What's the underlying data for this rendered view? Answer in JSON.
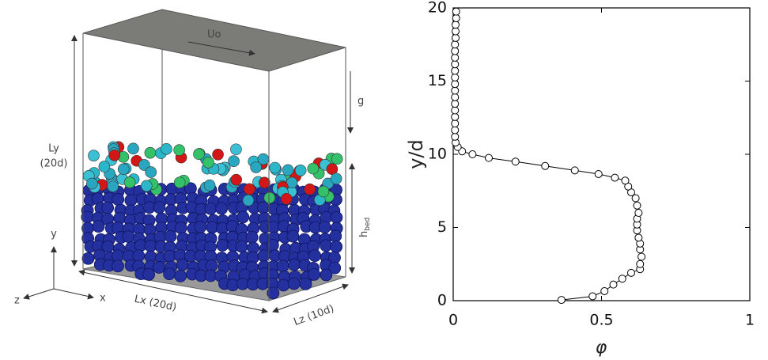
{
  "diagram": {
    "flow_label": "Uo",
    "gravity_label": "g",
    "ly_label": "Ly",
    "ly_value": "(20d)",
    "h_bed": {
      "main": "h",
      "sub": "bed"
    },
    "lx_label": "Lx (20d)",
    "lz_label": "Lz (10d)",
    "axis_y": "y",
    "axis_x": "x",
    "axis_z": "z"
  },
  "chart_data": {
    "type": "line",
    "x_label": "φ",
    "y_label": "y/d",
    "color": "#000000",
    "x": [
      0.365,
      0.47,
      0.51,
      0.54,
      0.57,
      0.6,
      0.63,
      0.63,
      0.635,
      0.63,
      0.63,
      0.625,
      0.62,
      0.62,
      0.62,
      0.625,
      0.62,
      0.615,
      0.6,
      0.59,
      0.58,
      0.545,
      0.49,
      0.41,
      0.31,
      0.21,
      0.12,
      0.065,
      0.03,
      0.015,
      0.008,
      0.006,
      0.006,
      0.006,
      0.006,
      0.006,
      0.006,
      0.006,
      0.006,
      0.006,
      0.006,
      0.006,
      0.006,
      0.006,
      0.006,
      0.006,
      0.008,
      0.008,
      0.008,
      0.01,
      0.01
    ],
    "values": [
      0.05,
      0.3,
      0.65,
      1.1,
      1.5,
      1.9,
      2.15,
      2.5,
      3.0,
      3.5,
      3.9,
      4.3,
      4.8,
      5.2,
      5.6,
      6.0,
      6.5,
      7.0,
      7.4,
      7.8,
      8.2,
      8.4,
      8.65,
      8.9,
      9.2,
      9.5,
      9.75,
      10.0,
      10.2,
      10.5,
      10.8,
      11.2,
      11.65,
      12.1,
      12.55,
      13.0,
      13.45,
      13.9,
      14.35,
      14.8,
      15.25,
      15.7,
      16.15,
      16.6,
      17.05,
      17.5,
      17.95,
      18.4,
      18.85,
      19.3,
      19.75
    ],
    "xlim": [
      0,
      1
    ],
    "xticks": [
      0,
      0.5,
      1
    ],
    "ylim": [
      0,
      20
    ],
    "yticks": [
      0,
      5,
      10,
      15,
      20
    ]
  }
}
